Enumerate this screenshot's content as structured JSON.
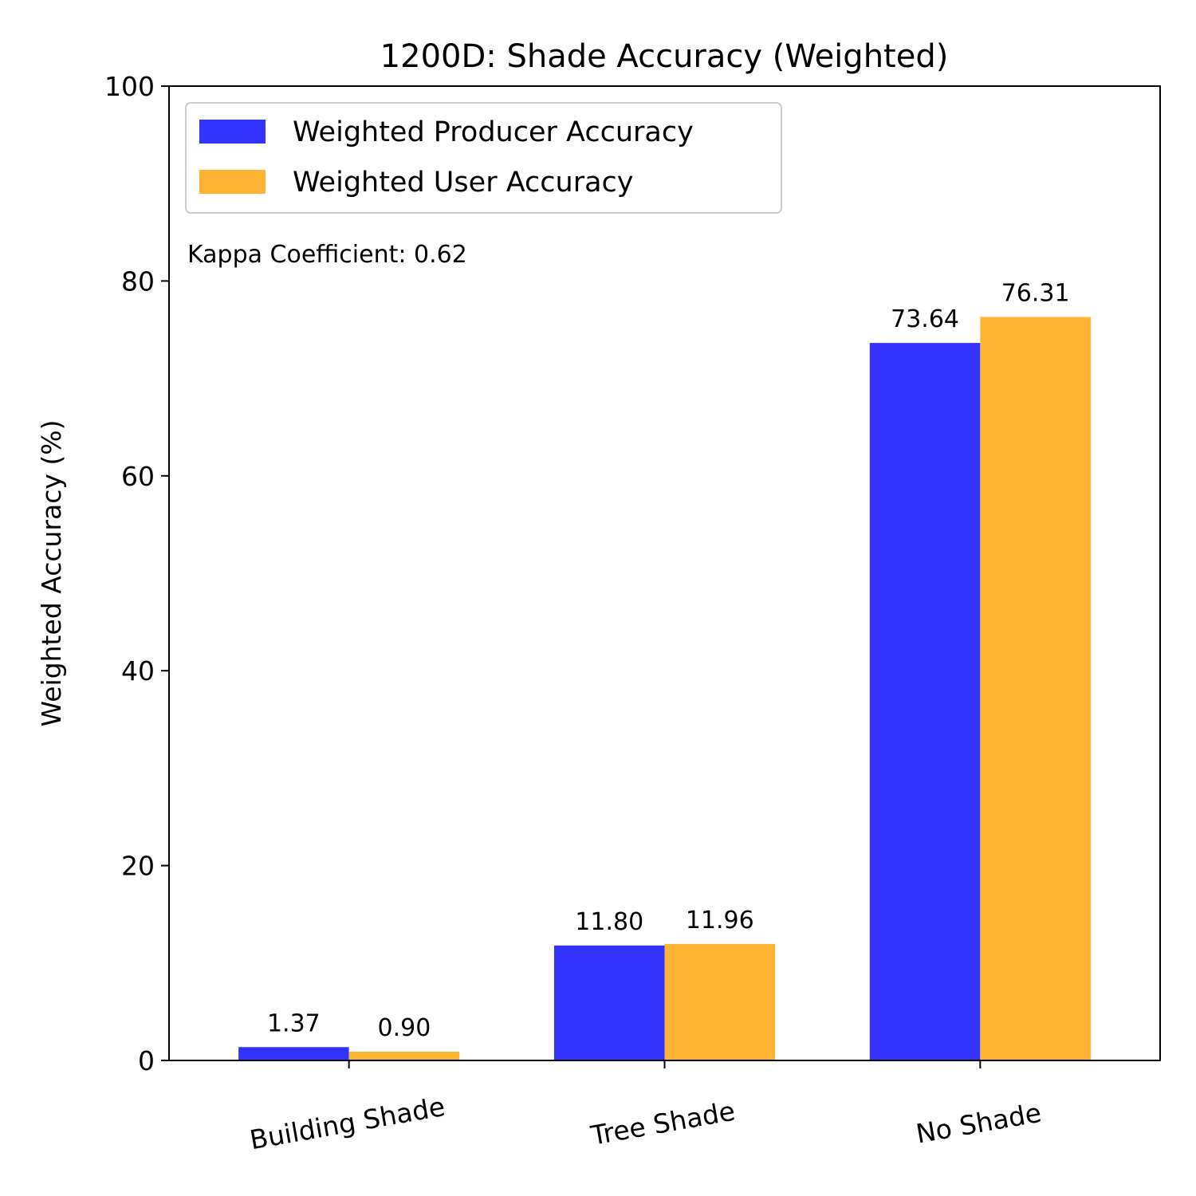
{
  "chart_data": {
    "type": "bar",
    "title": "1200D: Shade Accuracy (Weighted)",
    "xlabel": "",
    "ylabel": "Weighted Accuracy (%)",
    "categories": [
      "Building Shade",
      "Tree Shade",
      "No Shade"
    ],
    "series": [
      {
        "name": "Weighted Producer Accuracy",
        "values": [
          1.37,
          11.8,
          73.64
        ],
        "labels": [
          "1.37",
          "11.80",
          "73.64"
        ],
        "color": "#3333ff"
      },
      {
        "name": "Weighted User Accuracy",
        "values": [
          0.9,
          11.96,
          76.31
        ],
        "labels": [
          "0.90",
          "11.96",
          "76.31"
        ],
        "color": "#ffb333"
      }
    ],
    "ylim": [
      0,
      100
    ],
    "yticks": [
      "0",
      "20",
      "40",
      "60",
      "80",
      "100"
    ],
    "grid": false,
    "legend": "top-left",
    "annotation": "Kappa Coefficient: 0.62"
  }
}
